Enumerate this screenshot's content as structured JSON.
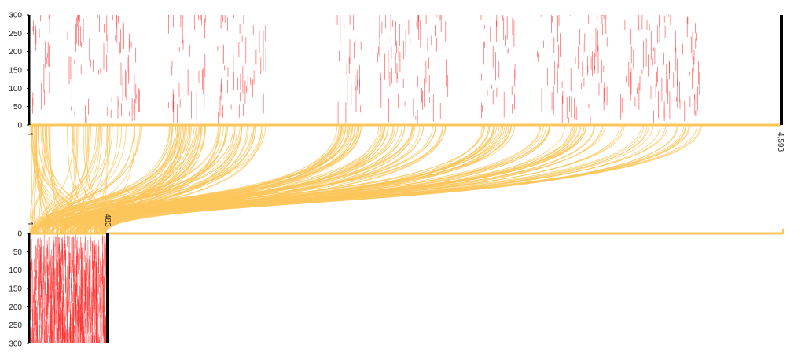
{
  "chart_data": {
    "type": "alignment-synteny",
    "top_track": {
      "ticks": [
        "300",
        "250",
        "200",
        "150",
        "100",
        "50",
        "0"
      ],
      "ylim": [
        0,
        300
      ],
      "coordinate_range": [
        1,
        4593
      ],
      "start_label": "1",
      "end_label": "4,593",
      "segment_clusters": [
        [
          1,
          130
        ],
        [
          230,
          690
        ],
        [
          850,
          1080
        ],
        [
          1150,
          1450
        ],
        [
          1880,
          2030
        ],
        [
          2130,
          2560
        ],
        [
          2760,
          2970
        ],
        [
          3100,
          3530
        ],
        [
          3600,
          4120
        ]
      ],
      "orientation": "up"
    },
    "bottom_track": {
      "ticks": [
        "0",
        "50",
        "100",
        "150",
        "200",
        "250",
        "300"
      ],
      "ylim": [
        0,
        300
      ],
      "coordinate_range": [
        1,
        483
      ],
      "start_label": "1",
      "end_label": "483",
      "orientation": "down"
    },
    "colors": {
      "alignment": "#ff2a2a",
      "link": "#fcc65a",
      "axis_end": "#000000"
    },
    "link_count": 260
  }
}
